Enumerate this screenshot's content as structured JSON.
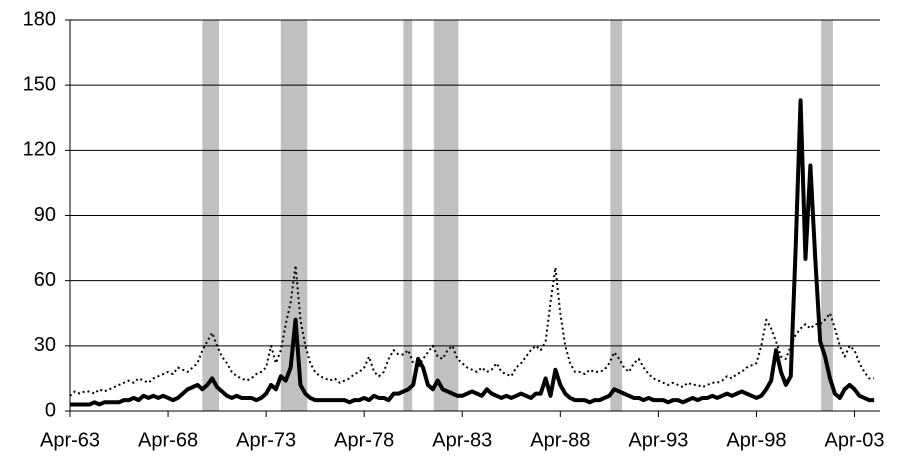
{
  "chart_data": {
    "type": "line",
    "x": [
      1963.25,
      1963.5,
      1963.75,
      1964,
      1964.25,
      1964.5,
      1964.75,
      1965,
      1965.25,
      1965.5,
      1965.75,
      1966,
      1966.25,
      1966.5,
      1966.75,
      1967,
      1967.25,
      1967.5,
      1967.75,
      1968,
      1968.25,
      1968.5,
      1968.75,
      1969,
      1969.25,
      1969.5,
      1969.75,
      1970,
      1970.25,
      1970.5,
      1970.75,
      1971,
      1971.25,
      1971.5,
      1971.75,
      1972,
      1972.25,
      1972.5,
      1972.75,
      1973,
      1973.25,
      1973.5,
      1973.75,
      1974,
      1974.25,
      1974.5,
      1974.75,
      1975,
      1975.25,
      1975.5,
      1975.75,
      1976,
      1976.25,
      1976.5,
      1976.75,
      1977,
      1977.25,
      1977.5,
      1977.75,
      1978,
      1978.25,
      1978.5,
      1978.75,
      1979,
      1979.25,
      1979.5,
      1979.75,
      1980,
      1980.25,
      1980.5,
      1980.75,
      1981,
      1981.25,
      1981.5,
      1981.75,
      1982,
      1982.25,
      1982.5,
      1982.75,
      1983,
      1983.25,
      1983.5,
      1983.75,
      1984,
      1984.25,
      1984.5,
      1984.75,
      1985,
      1985.25,
      1985.5,
      1985.75,
      1986,
      1986.25,
      1986.5,
      1986.75,
      1987,
      1987.25,
      1987.5,
      1987.75,
      1988,
      1988.25,
      1988.5,
      1988.75,
      1989,
      1989.25,
      1989.5,
      1989.75,
      1990,
      1990.25,
      1990.5,
      1990.75,
      1991,
      1991.25,
      1991.5,
      1991.75,
      1992,
      1992.25,
      1992.5,
      1992.75,
      1993,
      1993.25,
      1993.5,
      1993.75,
      1994,
      1994.25,
      1994.5,
      1994.75,
      1995,
      1995.25,
      1995.5,
      1995.75,
      1996,
      1996.25,
      1996.5,
      1996.75,
      1997,
      1997.25,
      1997.5,
      1997.75,
      1998,
      1998.25,
      1998.5,
      1998.75,
      1999,
      1999.25,
      1999.5,
      1999.75,
      2000,
      2000.25,
      2000.5,
      2000.75,
      2001,
      2001.25,
      2001.5,
      2001.75,
      2002,
      2002.25,
      2002.5,
      2002.75,
      2003,
      2003.25,
      2003.5,
      2003.75,
      2004,
      2004.25
    ],
    "series": [
      {
        "color": "#000000",
        "style": "solid",
        "values": [
          3,
          3,
          3,
          3,
          3,
          4,
          3,
          4,
          4,
          4,
          4,
          5,
          5,
          6,
          5,
          7,
          6,
          7,
          6,
          7,
          6,
          5,
          6,
          8,
          10,
          11,
          12,
          10,
          12,
          15,
          11,
          9,
          7,
          6,
          7,
          6,
          6,
          6,
          5,
          6,
          8,
          12,
          10,
          16,
          14,
          20,
          42,
          12,
          8,
          6,
          5,
          5,
          5,
          5,
          5,
          5,
          5,
          4,
          5,
          5,
          6,
          5,
          7,
          6,
          6,
          5,
          8,
          8,
          9,
          10,
          12,
          24,
          20,
          12,
          10,
          14,
          10,
          9,
          8,
          7,
          7,
          8,
          9,
          8,
          7,
          10,
          8,
          7,
          6,
          7,
          6,
          7,
          8,
          7,
          6,
          8,
          8,
          15,
          7,
          19,
          12,
          8,
          6,
          5,
          5,
          5,
          4,
          5,
          5,
          6,
          7,
          10,
          9,
          8,
          7,
          6,
          6,
          5,
          6,
          5,
          5,
          5,
          4,
          5,
          5,
          4,
          5,
          6,
          5,
          6,
          6,
          7,
          6,
          7,
          8,
          7,
          8,
          9,
          8,
          7,
          6,
          7,
          10,
          14,
          28,
          18,
          12,
          16,
          75,
          143,
          70,
          113,
          70,
          32,
          25,
          15,
          8,
          6,
          10,
          12,
          10,
          7,
          6,
          5,
          5
        ]
      },
      {
        "color": "#000000",
        "style": "dotted",
        "values": [
          7,
          9,
          8,
          9,
          9,
          8,
          10,
          9,
          10,
          11,
          12,
          13,
          14,
          13,
          15,
          14,
          13,
          15,
          16,
          17,
          18,
          17,
          20,
          19,
          18,
          20,
          22,
          28,
          32,
          36,
          30,
          25,
          22,
          18,
          16,
          15,
          14,
          15,
          17,
          18,
          20,
          30,
          22,
          28,
          40,
          50,
          67,
          42,
          30,
          22,
          18,
          16,
          15,
          14,
          15,
          13,
          14,
          15,
          17,
          18,
          20,
          25,
          18,
          16,
          18,
          24,
          28,
          26,
          26,
          28,
          22,
          20,
          24,
          27,
          30,
          25,
          24,
          28,
          30,
          24,
          22,
          20,
          19,
          18,
          20,
          18,
          19,
          22,
          18,
          17,
          16,
          20,
          22,
          25,
          28,
          30,
          28,
          32,
          50,
          66,
          45,
          30,
          22,
          18,
          18,
          17,
          19,
          18,
          18,
          19,
          22,
          27,
          24,
          20,
          18,
          22,
          24,
          20,
          17,
          15,
          14,
          13,
          12,
          13,
          12,
          11,
          13,
          12,
          12,
          11,
          12,
          13,
          13,
          14,
          16,
          15,
          17,
          18,
          20,
          21,
          22,
          30,
          42,
          38,
          32,
          25,
          24,
          30,
          35,
          38,
          40,
          38,
          40,
          40,
          42,
          45,
          38,
          30,
          25,
          30,
          28,
          22,
          18,
          15,
          15
        ]
      }
    ],
    "xlim": [
      1963.25,
      2004.55
    ],
    "xticks": [
      {
        "value": 1963.25,
        "label": "Apr-63"
      },
      {
        "value": 1968.25,
        "label": "Apr-68"
      },
      {
        "value": 1973.25,
        "label": "Apr-73"
      },
      {
        "value": 1978.25,
        "label": "Apr-78"
      },
      {
        "value": 1983.25,
        "label": "Apr-83"
      },
      {
        "value": 1988.25,
        "label": "Apr-88"
      },
      {
        "value": 1993.25,
        "label": "Apr-93"
      },
      {
        "value": 1998.25,
        "label": "Apr-98"
      },
      {
        "value": 2003.25,
        "label": "Apr-03"
      }
    ],
    "ylim": [
      0,
      180
    ],
    "yticks": [
      0,
      30,
      60,
      90,
      120,
      150,
      180
    ],
    "grid": true,
    "shaded_periods": [
      [
        1970.0,
        1970.85
      ],
      [
        1974.0,
        1975.35
      ],
      [
        1980.25,
        1980.7
      ],
      [
        1981.8,
        1983.05
      ],
      [
        1990.8,
        1991.4
      ],
      [
        2001.55,
        2002.15
      ]
    ],
    "shade_color": "#c0c0c0"
  }
}
